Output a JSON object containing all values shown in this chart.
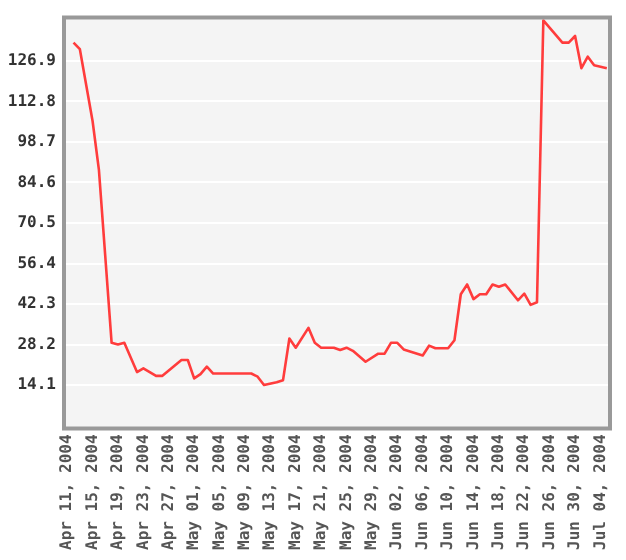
{
  "chart_data": {
    "type": "line",
    "x": [
      "2004-04-12",
      "2004-04-13",
      "2004-04-15",
      "2004-04-16",
      "2004-04-18",
      "2004-04-19",
      "2004-04-20",
      "2004-04-22",
      "2004-04-23",
      "2004-04-25",
      "2004-04-26",
      "2004-04-29",
      "2004-04-30",
      "2004-05-01",
      "2004-05-02",
      "2004-05-03",
      "2004-05-04",
      "2004-05-10",
      "2004-05-11",
      "2004-05-12",
      "2004-05-14",
      "2004-05-15",
      "2004-05-16",
      "2004-05-17",
      "2004-05-19",
      "2004-05-20",
      "2004-05-21",
      "2004-05-23",
      "2004-05-24",
      "2004-05-25",
      "2004-05-26",
      "2004-05-28",
      "2004-05-30",
      "2004-05-31",
      "2004-06-01",
      "2004-06-02",
      "2004-06-03",
      "2004-06-06",
      "2004-06-07",
      "2004-06-08",
      "2004-06-10",
      "2004-06-11",
      "2004-06-12",
      "2004-06-13",
      "2004-06-14",
      "2004-06-15",
      "2004-06-16",
      "2004-06-17",
      "2004-06-18",
      "2004-06-19",
      "2004-06-21",
      "2004-06-22",
      "2004-06-23",
      "2004-06-24",
      "2004-06-25",
      "2004-06-28",
      "2004-06-29",
      "2004-06-30",
      "2004-07-01",
      "2004-07-02",
      "2004-07-03",
      "2004-07-05"
    ],
    "series": [
      {
        "color": "#ff3c3c",
        "values": [
          133.3,
          131,
          106,
          89,
          28.8,
          28.2,
          28.8,
          18.6,
          19.9,
          17.3,
          17.3,
          22.8,
          22.8,
          16.4,
          17.9,
          20.5,
          18.1,
          18.1,
          17,
          14.1,
          15.1,
          15.8,
          30.3,
          27.1,
          34,
          28.8,
          27.1,
          27.1,
          26.3,
          27.1,
          26,
          22.2,
          25,
          25,
          28.8,
          28.8,
          26.5,
          24.4,
          27.8,
          26.9,
          26.9,
          29.7,
          45.7,
          49.1,
          44,
          45.7,
          45.7,
          49.1,
          48.3,
          49.1,
          43.6,
          45.9,
          42,
          42.9,
          141,
          133.3,
          133.3,
          135.6,
          124.4,
          128.4,
          125.4,
          124.4
        ]
      }
    ],
    "xlim": [
      "2004-04-10T12:00",
      "2004-07-05T12:00"
    ],
    "xticks": [
      {
        "value": "2004-04-11",
        "label": "Apr 11, 2004"
      },
      {
        "value": "2004-04-15",
        "label": "Apr 15, 2004"
      },
      {
        "value": "2004-04-19",
        "label": "Apr 19, 2004"
      },
      {
        "value": "2004-04-23",
        "label": "Apr 23, 2004"
      },
      {
        "value": "2004-04-27",
        "label": "Apr 27, 2004"
      },
      {
        "value": "2004-05-01",
        "label": "May 01, 2004"
      },
      {
        "value": "2004-05-05",
        "label": "May 05, 2004"
      },
      {
        "value": "2004-05-09",
        "label": "May 09, 2004"
      },
      {
        "value": "2004-05-13",
        "label": "May 13, 2004"
      },
      {
        "value": "2004-05-17",
        "label": "May 17, 2004"
      },
      {
        "value": "2004-05-21",
        "label": "May 21, 2004"
      },
      {
        "value": "2004-05-25",
        "label": "May 25, 2004"
      },
      {
        "value": "2004-05-29",
        "label": "May 29, 2004"
      },
      {
        "value": "2004-06-02",
        "label": "Jun 02, 2004"
      },
      {
        "value": "2004-06-06",
        "label": "Jun 06, 2004"
      },
      {
        "value": "2004-06-10",
        "label": "Jun 10, 2004"
      },
      {
        "value": "2004-06-14",
        "label": "Jun 14, 2004"
      },
      {
        "value": "2004-06-18",
        "label": "Jun 18, 2004"
      },
      {
        "value": "2004-06-22",
        "label": "Jun 22, 2004"
      },
      {
        "value": "2004-06-26",
        "label": "Jun 26, 2004"
      },
      {
        "value": "2004-06-30",
        "label": "Jun 30, 2004"
      },
      {
        "value": "2004-07-04",
        "label": "Jul 04, 2004"
      }
    ],
    "ylim": [
      -1,
      142
    ],
    "yticks": [
      14.1,
      28.2,
      42.3,
      56.4,
      70.5,
      84.6,
      98.7,
      112.8,
      126.9
    ],
    "grid": "y",
    "legend": false,
    "marker": "none",
    "line_style": "solid"
  }
}
